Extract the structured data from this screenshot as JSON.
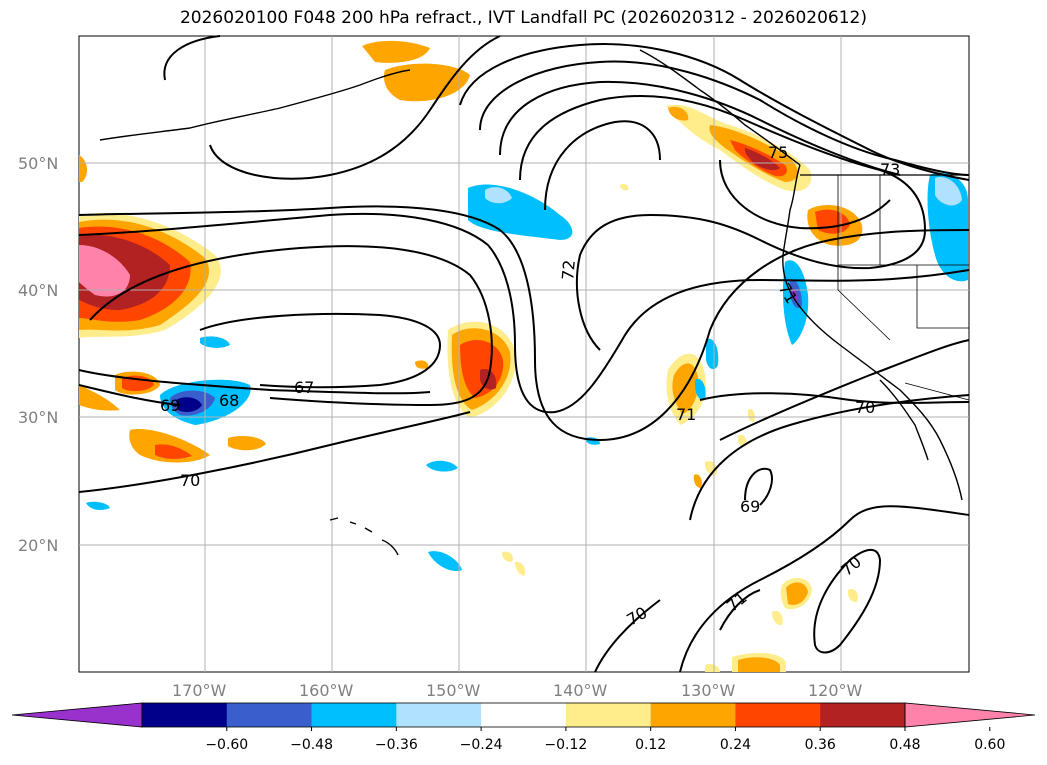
{
  "title": "2026020100 F048 200 hPa refract., IVT Landfall PC (2026020312 - 2026020612)",
  "map": {
    "latitudes": [
      "50°N",
      "40°N",
      "30°N",
      "20°N"
    ],
    "longitudes": [
      "170°W",
      "160°W",
      "150°W",
      "140°W",
      "130°W",
      "120°W"
    ],
    "contour_labels": [
      "67",
      "68",
      "69",
      "70",
      "71",
      "72",
      "75",
      "73",
      "70",
      "69",
      "71",
      "70",
      "70",
      "71",
      "69"
    ]
  },
  "colorbar": {
    "ticks": [
      "−0.60",
      "−0.48",
      "−0.36",
      "−0.24",
      "−0.12",
      "0.12",
      "0.24",
      "0.36",
      "0.48",
      "0.60"
    ],
    "colors": [
      "#9932cc",
      "#00008b",
      "#3a5fcd",
      "#00bfff",
      "#b0e2ff",
      "#ffffff",
      "#ffec8b",
      "#ffa500",
      "#ff4500",
      "#b22222",
      "#ff82ab"
    ]
  }
}
